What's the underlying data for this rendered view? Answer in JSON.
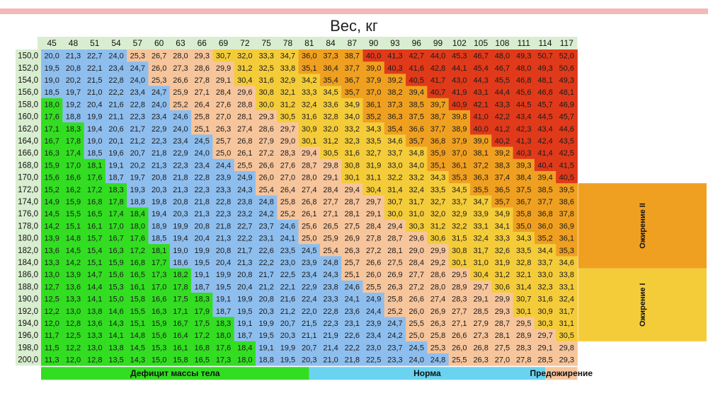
{
  "colors": {
    "deficit": "#33dd22",
    "norma": "#8ebeee",
    "pre": "#f7c59c",
    "ob1": "#f4cc3a",
    "ob2": "#f0a020",
    "ob3": "#e03a1a",
    "header_bg": "#d9eed0",
    "row_bg": "#d9eed0",
    "top_bar": "#f5b8b8"
  },
  "chart_data": {
    "type": "table",
    "title": "Вес, кг",
    "weights": [
      "45",
      "48",
      "51",
      "54",
      "57",
      "60",
      "63",
      "66",
      "69",
      "72",
      "75",
      "78",
      "81",
      "84",
      "87",
      "90",
      "93",
      "96",
      "99",
      "102",
      "105",
      "108",
      "111",
      "114",
      "117"
    ],
    "heights": [
      "150,0",
      "152,0",
      "154,0",
      "156,0",
      "158,0",
      "160,0",
      "162,0",
      "164,0",
      "166,0",
      "168,0",
      "170,0",
      "172,0",
      "174,0",
      "176,0",
      "178,0",
      "180,0",
      "182,0",
      "184,0",
      "186,0",
      "188,0",
      "190,0",
      "192,0",
      "194,0",
      "196,0",
      "198,0",
      "200,0"
    ],
    "values": [
      [
        "20,0",
        "21,3",
        "22,7",
        "24,0",
        "25,3",
        "26,7",
        "28,0",
        "29,3",
        "30,7",
        "32,0",
        "33,3",
        "34,7",
        "36,0",
        "37,3",
        "38,7",
        "40,0",
        "41,3",
        "42,7",
        "44,0",
        "45,3",
        "46,7",
        "48,0",
        "49,3",
        "50,7",
        "52,0"
      ],
      [
        "19,5",
        "20,8",
        "22,1",
        "23,4",
        "24,7",
        "26,0",
        "27,3",
        "28,6",
        "29,9",
        "31,2",
        "32,5",
        "33,8",
        "35,1",
        "36,4",
        "37,7",
        "39,0",
        "40,3",
        "41,6",
        "42,8",
        "44,1",
        "45,4",
        "46,7",
        "48,0",
        "49,3",
        "50,6"
      ],
      [
        "19,0",
        "20,2",
        "21,5",
        "22,8",
        "24,0",
        "25,3",
        "26,6",
        "27,8",
        "29,1",
        "30,4",
        "31,6",
        "32,9",
        "34,2",
        "35,4",
        "36,7",
        "37,9",
        "39,2",
        "40,5",
        "41,7",
        "43,0",
        "44,3",
        "45,5",
        "46,8",
        "48,1",
        "49,3"
      ],
      [
        "18,5",
        "19,7",
        "21,0",
        "22,2",
        "23,4",
        "24,7",
        "25,9",
        "27,1",
        "28,4",
        "29,6",
        "30,8",
        "32,1",
        "33,3",
        "34,5",
        "35,7",
        "37,0",
        "38,2",
        "39,4",
        "40,7",
        "41,9",
        "43,1",
        "44,4",
        "45,6",
        "46,8",
        "48,1"
      ],
      [
        "18,0",
        "19,2",
        "20,4",
        "21,6",
        "22,8",
        "24,0",
        "25,2",
        "26,4",
        "27,6",
        "28,8",
        "30,0",
        "31,2",
        "32,4",
        "33,6",
        "34,9",
        "36,1",
        "37,3",
        "38,5",
        "39,7",
        "40,9",
        "42,1",
        "43,3",
        "44,5",
        "45,7",
        "46,9"
      ],
      [
        "17,6",
        "18,8",
        "19,9",
        "21,1",
        "22,3",
        "23,4",
        "24,6",
        "25,8",
        "27,0",
        "28,1",
        "29,3",
        "30,5",
        "31,6",
        "32,8",
        "34,0",
        "35,2",
        "36,3",
        "37,5",
        "38,7",
        "39,8",
        "41,0",
        "42,2",
        "43,4",
        "44,5",
        "45,7"
      ],
      [
        "17,1",
        "18,3",
        "19,4",
        "20,6",
        "21,7",
        "22,9",
        "24,0",
        "25,1",
        "26,3",
        "27,4",
        "28,6",
        "29,7",
        "30,9",
        "32,0",
        "33,2",
        "34,3",
        "35,4",
        "36,6",
        "37,7",
        "38,9",
        "40,0",
        "41,2",
        "42,3",
        "43,4",
        "44,6"
      ],
      [
        "16,7",
        "17,8",
        "19,0",
        "20,1",
        "21,2",
        "22,3",
        "23,4",
        "24,5",
        "25,7",
        "26,8",
        "27,9",
        "29,0",
        "30,1",
        "31,2",
        "32,3",
        "33,5",
        "34,6",
        "35,7",
        "36,8",
        "37,9",
        "39,0",
        "40,2",
        "41,3",
        "42,4",
        "43,5"
      ],
      [
        "16,3",
        "17,4",
        "18,5",
        "19,6",
        "20,7",
        "21,8",
        "22,9",
        "24,0",
        "25,0",
        "26,1",
        "27,2",
        "28,3",
        "29,4",
        "30,5",
        "31,6",
        "32,7",
        "33,7",
        "34,8",
        "35,9",
        "37,0",
        "38,1",
        "39,2",
        "40,3",
        "41,4",
        "42,5"
      ],
      [
        "15,9",
        "17,0",
        "18,1",
        "19,1",
        "20,2",
        "21,3",
        "22,3",
        "23,4",
        "24,4",
        "25,5",
        "26,6",
        "27,6",
        "28,7",
        "29,8",
        "30,8",
        "31,9",
        "33,0",
        "34,0",
        "35,1",
        "36,1",
        "37,2",
        "38,3",
        "39,3",
        "40,4",
        "41,5"
      ],
      [
        "15,6",
        "16,6",
        "17,6",
        "18,7",
        "19,7",
        "20,8",
        "21,8",
        "22,8",
        "23,9",
        "24,9",
        "26,0",
        "27,0",
        "28,0",
        "29,1",
        "30,1",
        "31,1",
        "32,2",
        "33,2",
        "34,3",
        "35,3",
        "36,3",
        "37,4",
        "38,4",
        "39,4",
        "40,5"
      ],
      [
        "15,2",
        "16,2",
        "17,2",
        "18,3",
        "19,3",
        "20,3",
        "21,3",
        "22,3",
        "23,3",
        "24,3",
        "25,4",
        "26,4",
        "27,4",
        "28,4",
        "29,4",
        "30,4",
        "31,4",
        "32,4",
        "33,5",
        "34,5",
        "35,5",
        "36,5",
        "37,5",
        "38,5",
        "39,5"
      ],
      [
        "14,9",
        "15,9",
        "16,8",
        "17,8",
        "18,8",
        "19,8",
        "20,8",
        "21,8",
        "22,8",
        "23,8",
        "24,8",
        "25,8",
        "26,8",
        "27,7",
        "28,7",
        "29,7",
        "30,7",
        "31,7",
        "32,7",
        "33,7",
        "34,7",
        "35,7",
        "36,7",
        "37,7",
        "38,6"
      ],
      [
        "14,5",
        "15,5",
        "16,5",
        "17,4",
        "18,4",
        "19,4",
        "20,3",
        "21,3",
        "22,3",
        "23,2",
        "24,2",
        "25,2",
        "26,1",
        "27,1",
        "28,1",
        "29,1",
        "30,0",
        "31,0",
        "32,0",
        "32,9",
        "33,9",
        "34,9",
        "35,8",
        "36,8",
        "37,8"
      ],
      [
        "14,2",
        "15,1",
        "16,1",
        "17,0",
        "18,0",
        "18,9",
        "19,9",
        "20,8",
        "21,8",
        "22,7",
        "23,7",
        "24,6",
        "25,6",
        "26,5",
        "27,5",
        "28,4",
        "29,4",
        "30,3",
        "31,2",
        "32,2",
        "33,1",
        "34,1",
        "35,0",
        "36,0",
        "36,9"
      ],
      [
        "13,9",
        "14,8",
        "15,7",
        "16,7",
        "17,6",
        "18,5",
        "19,4",
        "20,4",
        "21,3",
        "22,2",
        "23,1",
        "24,1",
        "25,0",
        "25,9",
        "26,9",
        "27,8",
        "28,7",
        "29,6",
        "30,6",
        "31,5",
        "32,4",
        "33,3",
        "34,3",
        "35,2",
        "36,1"
      ],
      [
        "13,6",
        "14,5",
        "15,4",
        "16,3",
        "17,2",
        "18,1",
        "19,0",
        "19,9",
        "20,8",
        "21,7",
        "22,6",
        "23,5",
        "24,5",
        "25,4",
        "26,3",
        "27,2",
        "28,1",
        "29,0",
        "29,9",
        "30,8",
        "31,7",
        "32,6",
        "33,5",
        "34,4",
        "35,3"
      ],
      [
        "13,3",
        "14,2",
        "15,1",
        "15,9",
        "16,8",
        "17,7",
        "18,6",
        "19,5",
        "20,4",
        "21,3",
        "22,2",
        "23,0",
        "23,9",
        "24,8",
        "25,7",
        "26,6",
        "27,5",
        "28,4",
        "29,2",
        "30,1",
        "31,0",
        "31,9",
        "32,8",
        "33,7",
        "34,6"
      ],
      [
        "13,0",
        "13,9",
        "14,7",
        "15,6",
        "16,5",
        "17,3",
        "18,2",
        "19,1",
        "19,9",
        "20,8",
        "21,7",
        "22,5",
        "23,4",
        "24,3",
        "25,1",
        "26,0",
        "26,9",
        "27,7",
        "28,6",
        "29,5",
        "30,4",
        "31,2",
        "32,1",
        "33,0",
        "33,8"
      ],
      [
        "12,7",
        "13,6",
        "14,4",
        "15,3",
        "16,1",
        "17,0",
        "17,8",
        "18,7",
        "19,5",
        "20,4",
        "21,2",
        "22,1",
        "22,9",
        "23,8",
        "24,6",
        "25,5",
        "26,3",
        "27,2",
        "28,0",
        "28,9",
        "29,7",
        "30,6",
        "31,4",
        "32,3",
        "33,1"
      ],
      [
        "12,5",
        "13,3",
        "14,1",
        "15,0",
        "15,8",
        "16,6",
        "17,5",
        "18,3",
        "19,1",
        "19,9",
        "20,8",
        "21,6",
        "22,4",
        "23,3",
        "24,1",
        "24,9",
        "25,8",
        "26,6",
        "27,4",
        "28,3",
        "29,1",
        "29,9",
        "30,7",
        "31,6",
        "32,4"
      ],
      [
        "12,2",
        "13,0",
        "13,8",
        "14,6",
        "15,5",
        "16,3",
        "17,1",
        "17,9",
        "18,7",
        "19,5",
        "20,3",
        "21,2",
        "22,0",
        "22,8",
        "23,6",
        "24,4",
        "25,2",
        "26,0",
        "26,9",
        "27,7",
        "28,5",
        "29,3",
        "30,1",
        "30,9",
        "31,7"
      ],
      [
        "12,0",
        "12,8",
        "13,6",
        "14,3",
        "15,1",
        "15,9",
        "16,7",
        "17,5",
        "18,3",
        "19,1",
        "19,9",
        "20,7",
        "21,5",
        "22,3",
        "23,1",
        "23,9",
        "24,7",
        "25,5",
        "26,3",
        "27,1",
        "27,9",
        "28,7",
        "29,5",
        "30,3",
        "31,1"
      ],
      [
        "11,7",
        "12,5",
        "13,3",
        "14,1",
        "14,8",
        "15,6",
        "16,4",
        "17,2",
        "18,0",
        "18,7",
        "19,5",
        "20,3",
        "21,1",
        "21,9",
        "22,6",
        "23,4",
        "24,2",
        "25,0",
        "25,8",
        "26,6",
        "27,3",
        "28,1",
        "28,9",
        "29,7",
        "30,5"
      ],
      [
        "11,5",
        "12,2",
        "13,0",
        "13,8",
        "14,5",
        "15,3",
        "16,1",
        "16,8",
        "17,6",
        "18,4",
        "19,1",
        "19,9",
        "20,7",
        "21,4",
        "22,2",
        "23,0",
        "23,7",
        "24,5",
        "25,3",
        "26,0",
        "26,8",
        "27,5",
        "28,3",
        "29,1",
        "29,8"
      ],
      [
        "11,3",
        "12,0",
        "12,8",
        "13,5",
        "14,3",
        "15,0",
        "15,8",
        "16,5",
        "17,3",
        "18,0",
        "18,8",
        "19,5",
        "20,3",
        "21,0",
        "21,8",
        "22,5",
        "23,3",
        "24,0",
        "24,8",
        "25,5",
        "26,3",
        "27,0",
        "27,8",
        "28,5",
        "29,3"
      ]
    ],
    "categories": [
      {
        "key": "deficit",
        "label": "Дефицит массы тела"
      },
      {
        "key": "norma",
        "label": "Норма"
      },
      {
        "key": "pre",
        "label": "Предожирение"
      },
      {
        "key": "ob1",
        "label": "Ожирение I"
      },
      {
        "key": "ob2",
        "label": "Ожирение II"
      }
    ],
    "thresholds": [
      18.5,
      25,
      30,
      35,
      40
    ]
  }
}
